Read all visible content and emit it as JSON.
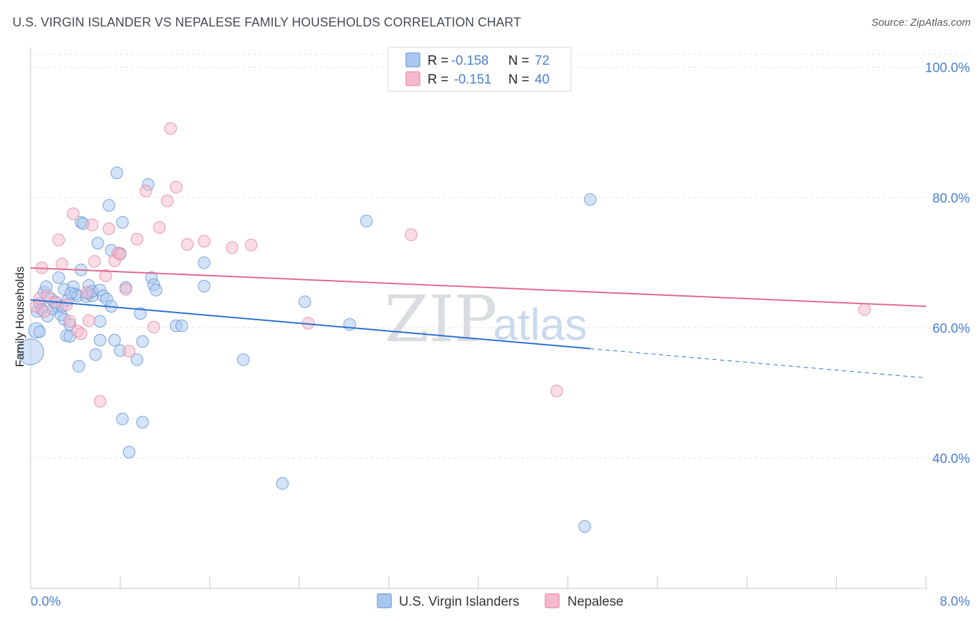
{
  "title": "U.S. VIRGIN ISLANDER VS NEPALESE FAMILY HOUSEHOLDS CORRELATION CHART",
  "source": "Source: ZipAtlas.com",
  "watermark": {
    "zip": "ZIP",
    "atlas": "atlas"
  },
  "colors": {
    "blue_fill": "#a9c7ef",
    "blue_stroke": "#5b8fd6",
    "blue_line": "#2a6fd1",
    "pink_fill": "#f6b9cc",
    "pink_stroke": "#e07f9f",
    "pink_line": "#e2688f",
    "axis_text": "#4a7fd0",
    "grid": "#dde1e6"
  },
  "chart_data": {
    "type": "scatter",
    "title": "U.S. VIRGIN ISLANDER VS NEPALESE FAMILY HOUSEHOLDS CORRELATION CHART",
    "xlabel": "",
    "ylabel": "Family Households",
    "xlim": [
      0,
      8
    ],
    "ylim": [
      20,
      102
    ],
    "x_tick_labels": [
      "0.0%",
      "8.0%"
    ],
    "y_ticks": [
      40,
      60,
      80,
      100
    ],
    "y_tick_labels": [
      "40.0%",
      "60.0%",
      "80.0%",
      "100.0%"
    ],
    "legend": [
      {
        "name": "U.S. Virgin Islanders",
        "r_label": "R =",
        "r_value": "-0.158",
        "n_label": "N =",
        "n_value": "72"
      },
      {
        "name": "Nepalese",
        "r_label": "R =",
        "r_value": "-0.151",
        "n_label": "N =",
        "n_value": "40"
      }
    ],
    "series": [
      {
        "name": "U.S. Virgin Islanders",
        "trend": {
          "x_start": 0.0,
          "y_start": 64.3,
          "x_solid_end": 5.0,
          "y_solid_end": 56.8,
          "x_end": 8.0,
          "y_end": 52.3
        },
        "points": [
          [
            0.0,
            56.3,
            2.2
          ],
          [
            0.05,
            59.6,
            1.3
          ],
          [
            0.06,
            62.5,
            1
          ],
          [
            0.08,
            63.7,
            1
          ],
          [
            0.1,
            62.8,
            1
          ],
          [
            0.12,
            65.5,
            1
          ],
          [
            0.14,
            66.3,
            1
          ],
          [
            0.15,
            61.8,
            1
          ],
          [
            0.18,
            64.5,
            1
          ],
          [
            0.2,
            62.9,
            1
          ],
          [
            0.22,
            63.8,
            1
          ],
          [
            0.24,
            63.2,
            1
          ],
          [
            0.25,
            67.7,
            1
          ],
          [
            0.27,
            62.0,
            1
          ],
          [
            0.28,
            63.3,
            1
          ],
          [
            0.3,
            61.3,
            1
          ],
          [
            0.3,
            65.9,
            1
          ],
          [
            0.32,
            58.8,
            1
          ],
          [
            0.33,
            64.2,
            1
          ],
          [
            0.35,
            58.7,
            1
          ],
          [
            0.35,
            60.5,
            1
          ],
          [
            0.38,
            66.3,
            1
          ],
          [
            0.4,
            65.2,
            1
          ],
          [
            0.42,
            64.9,
            1
          ],
          [
            0.45,
            68.9,
            1
          ],
          [
            0.43,
            54.1,
            1
          ],
          [
            0.45,
            76.2,
            1
          ],
          [
            0.47,
            76.0,
            1
          ],
          [
            0.5,
            64.8,
            1
          ],
          [
            0.52,
            65.3,
            1
          ],
          [
            0.52,
            66.5,
            1
          ],
          [
            0.55,
            64.9,
            1
          ],
          [
            0.55,
            65.6,
            1
          ],
          [
            0.58,
            55.9,
            1
          ],
          [
            0.6,
            73.0,
            1
          ],
          [
            0.62,
            58.1,
            1
          ],
          [
            0.62,
            65.8,
            1
          ],
          [
            0.62,
            61.0,
            1
          ],
          [
            0.65,
            64.9,
            1
          ],
          [
            0.68,
            64.4,
            1
          ],
          [
            0.7,
            78.8,
            1
          ],
          [
            0.72,
            63.3,
            1
          ],
          [
            0.72,
            71.9,
            1
          ],
          [
            0.75,
            58.1,
            1
          ],
          [
            0.77,
            83.8,
            1
          ],
          [
            0.8,
            56.5,
            1
          ],
          [
            0.8,
            71.4,
            1
          ],
          [
            0.82,
            76.2,
            1
          ],
          [
            0.82,
            46.0,
            1
          ],
          [
            0.85,
            66.2,
            1
          ],
          [
            0.88,
            40.9,
            1
          ],
          [
            0.95,
            55.1,
            1
          ],
          [
            0.98,
            62.2,
            1
          ],
          [
            1.0,
            45.5,
            1
          ],
          [
            1.0,
            57.9,
            1
          ],
          [
            1.05,
            82.0,
            1
          ],
          [
            1.08,
            67.7,
            1
          ],
          [
            1.1,
            66.6,
            1
          ],
          [
            1.12,
            65.8,
            1
          ],
          [
            1.3,
            60.3,
            1
          ],
          [
            1.35,
            60.3,
            1
          ],
          [
            1.55,
            70.0,
            1
          ],
          [
            1.55,
            66.4,
            1
          ],
          [
            1.9,
            55.1,
            1
          ],
          [
            2.25,
            36.1,
            1
          ],
          [
            2.45,
            64.0,
            1
          ],
          [
            2.85,
            60.5,
            1
          ],
          [
            3.0,
            76.4,
            1
          ],
          [
            5.0,
            79.7,
            1
          ],
          [
            4.95,
            29.5,
            1
          ],
          [
            0.08,
            59.4,
            1
          ],
          [
            0.36,
            65.3,
            1
          ]
        ]
      },
      {
        "name": "Nepalese",
        "trend": {
          "x_start": 0.0,
          "y_start": 69.2,
          "x_end": 8.0,
          "y_end": 63.3
        },
        "points": [
          [
            0.05,
            63.3,
            1
          ],
          [
            0.08,
            64.5,
            1
          ],
          [
            0.1,
            69.2,
            1
          ],
          [
            0.12,
            62.5,
            1
          ],
          [
            0.15,
            64.9,
            1
          ],
          [
            0.22,
            64.0,
            1
          ],
          [
            0.25,
            73.5,
            1
          ],
          [
            0.28,
            69.8,
            1
          ],
          [
            0.32,
            63.5,
            1
          ],
          [
            0.35,
            61.0,
            1
          ],
          [
            0.38,
            77.5,
            1
          ],
          [
            0.42,
            59.5,
            1
          ],
          [
            0.45,
            59.1,
            1
          ],
          [
            0.5,
            65.4,
            1
          ],
          [
            0.52,
            61.1,
            1
          ],
          [
            0.55,
            75.8,
            1
          ],
          [
            0.57,
            70.2,
            1
          ],
          [
            0.62,
            48.7,
            1
          ],
          [
            0.67,
            68.0,
            1
          ],
          [
            0.7,
            75.2,
            1
          ],
          [
            0.75,
            70.3,
            1
          ],
          [
            0.78,
            71.5,
            1
          ],
          [
            0.8,
            71.3,
            1
          ],
          [
            0.85,
            65.9,
            1
          ],
          [
            0.88,
            56.4,
            1
          ],
          [
            0.95,
            73.6,
            1
          ],
          [
            1.03,
            81.0,
            1
          ],
          [
            1.1,
            60.1,
            1
          ],
          [
            1.15,
            75.4,
            1
          ],
          [
            1.22,
            79.5,
            1
          ],
          [
            1.25,
            90.6,
            1
          ],
          [
            1.3,
            81.6,
            1
          ],
          [
            1.4,
            72.8,
            1
          ],
          [
            1.55,
            73.3,
            1
          ],
          [
            1.8,
            72.3,
            1
          ],
          [
            1.97,
            72.7,
            1
          ],
          [
            2.48,
            60.7,
            1
          ],
          [
            3.4,
            74.3,
            1
          ],
          [
            4.7,
            50.3,
            1
          ],
          [
            7.45,
            62.8,
            1
          ]
        ]
      }
    ]
  }
}
